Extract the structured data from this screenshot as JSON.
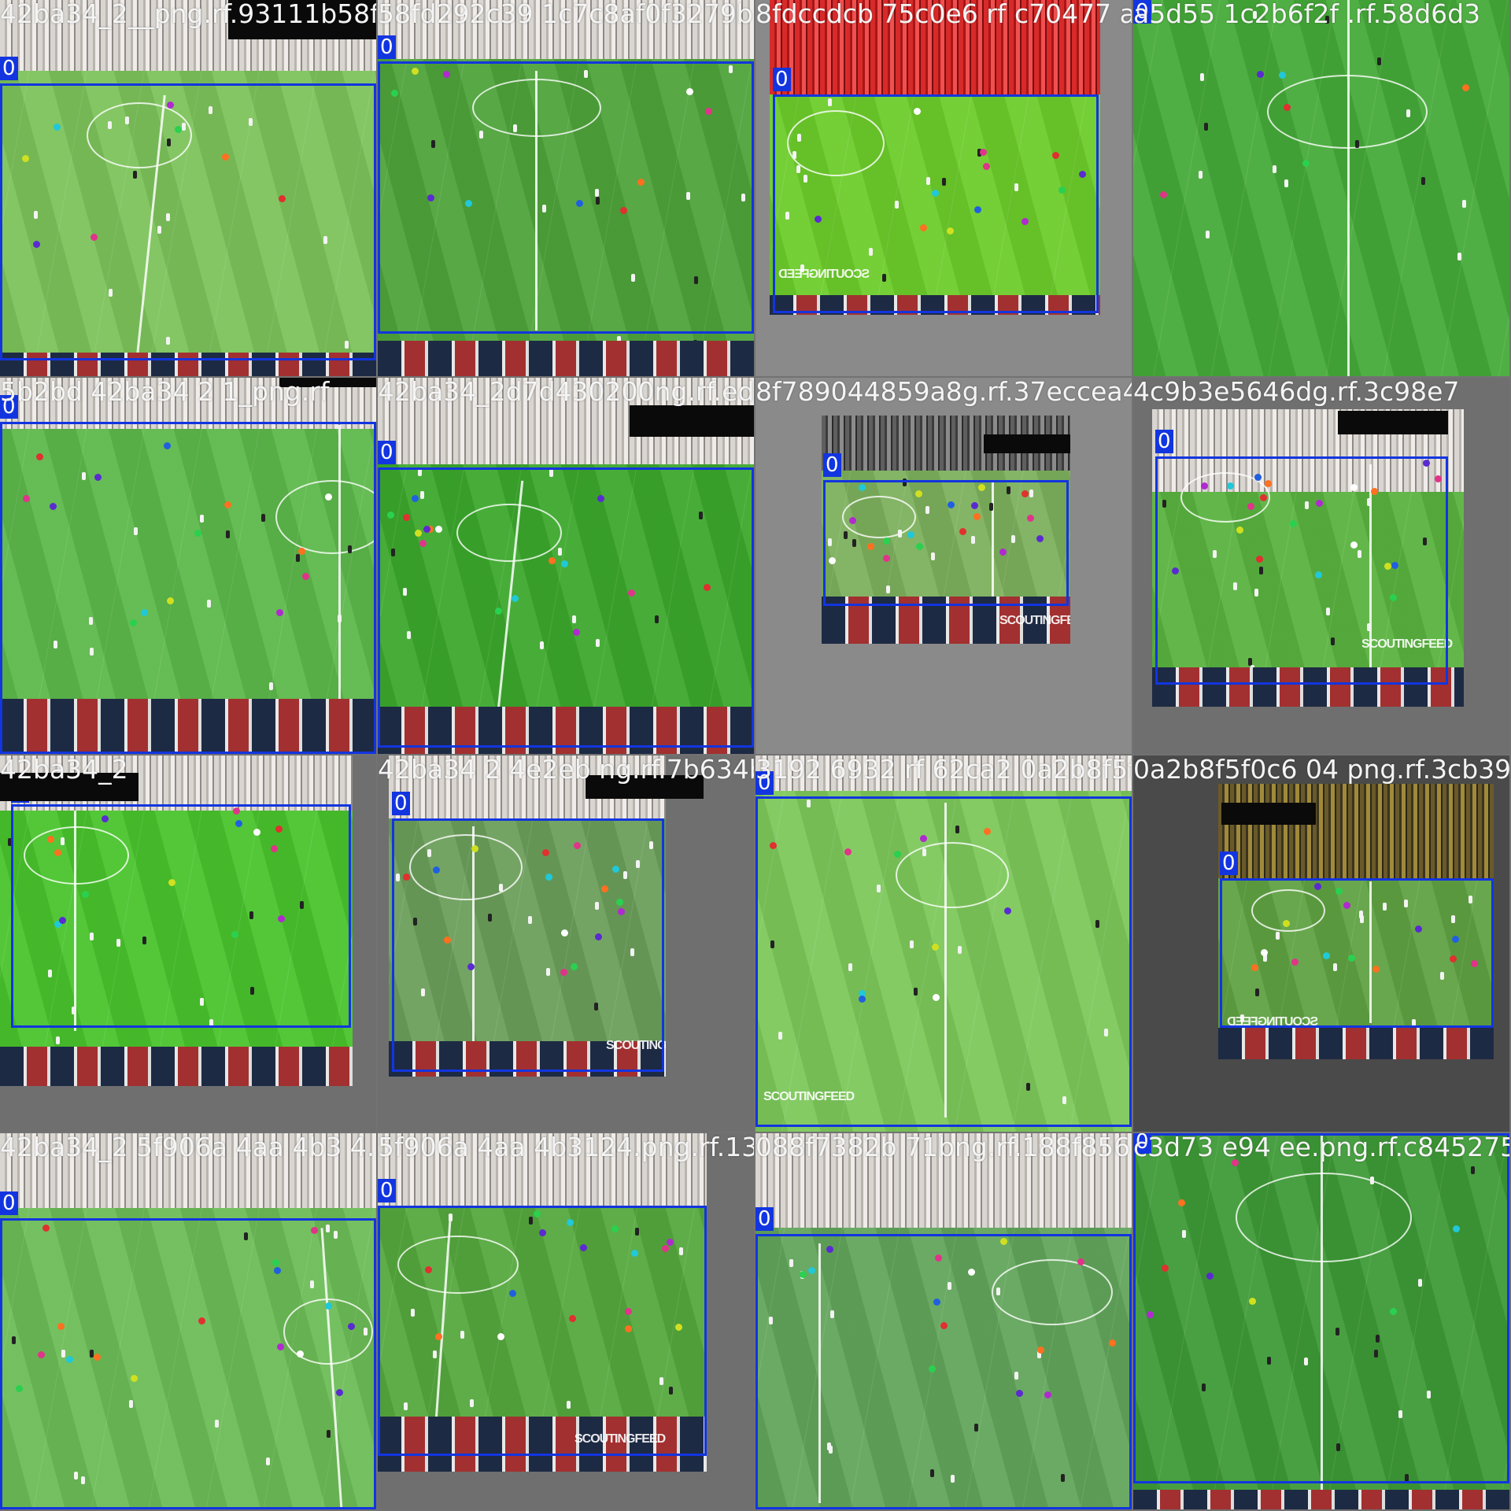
{
  "mosaic_title": "",
  "box_label": "0",
  "watermark": "SCOUTINGFEED",
  "tiles": [
    {
      "name": "...2ba34_2...png.rf.93111b53...",
      "title": "42ba34_2__png.rf.93111b58fd29263c91c7c8af0f3279b2 0"
    },
    {
      "name": "...",
      "title": "58fd292c39 1c7c8af0f3279b2 4 8fdccdcb 75c0e6 rf c70477"
    },
    {
      "name": "...",
      "title": "8fdccdcb 75c0e6 rf c70477 a5d55 1c2b6f2f .rf.58d6d3"
    },
    {
      "name": "...",
      "title": "a5d55 1c2b6f2f .rf.58d6d3"
    },
    {
      "name": "...",
      "title": "5b2bd 42ba34 2 1_png.rf"
    },
    {
      "name": "...",
      "title": "42ba34_2d7d430200ng.rf.ed7d7 8f7890448 9a8g.rf.37eccea"
    },
    {
      "name": "...",
      "title": "8f789044859a8g.rf.37eccea4c9b3e 5646dg.rf.3c98e7"
    },
    {
      "name": "...",
      "title": "4c9b3e5646dg.rf.3c98e7"
    },
    {
      "name": "...",
      "title": "42ba34_2"
    },
    {
      "name": "...",
      "title": "42ba34 2 4e2eb ng.rf.7b634b"
    },
    {
      "name": "...",
      "title": "3192 6932 rf 62ca2 0a2b8f5f0c6 png.rf.3cb3958"
    },
    {
      "name": "...",
      "title": "0a2b8f5f0c6 04 png.rf.3cb3958"
    },
    {
      "name": "...",
      "title": "42ba34_2 5f906a 4aa 4b3 4.png.rf.13d9292"
    },
    {
      "name": "...",
      "title": "5f906a 4aa 4b3124.png.rf.13d9292 088f7382b 71bng.rf.188f856"
    },
    {
      "name": "...",
      "title": "088f7382b 71bng.rf.188f856 c3d73 e94 ee.png.rf.c845275"
    },
    {
      "name": "...",
      "title": "c3d73 e94 ee.png.rf.c845275"
    }
  ],
  "colors": {
    "box": "#1235e0",
    "keypoints": [
      "#5a2bd0",
      "#e0348a",
      "#2ad050",
      "#ff7020",
      "#e03030",
      "#20c8d8",
      "#b02ad0",
      "#d0e020",
      "#2060e0",
      "#ffffff"
    ]
  }
}
